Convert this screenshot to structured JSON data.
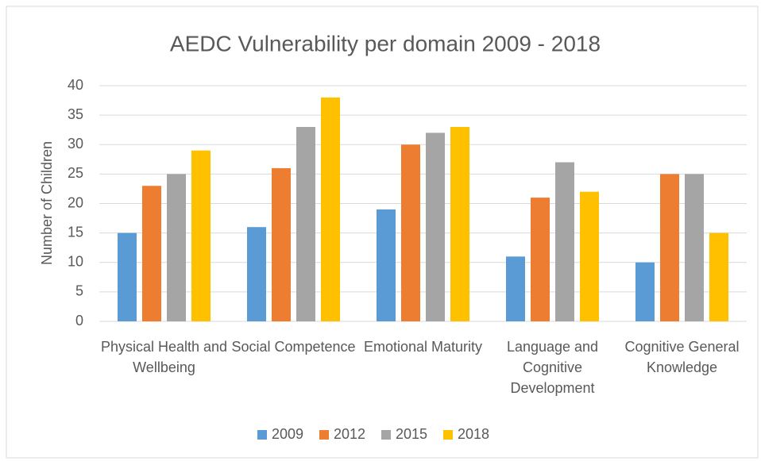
{
  "chart_data": {
    "type": "bar",
    "title": "AEDC Vulnerability per domain 2009 - 2018",
    "y_label": "Number of Children",
    "categories": [
      "Physical Health and Wellbeing",
      "Social Competence",
      "Emotional Maturity",
      "Language and Cognitive Development",
      "Cognitive General Knowledge"
    ],
    "series": [
      {
        "name": "2009",
        "color": "#5b9bd5",
        "values": [
          15,
          16,
          19,
          11,
          10
        ]
      },
      {
        "name": "2012",
        "color": "#ed7d31",
        "values": [
          23,
          26,
          30,
          21,
          25
        ]
      },
      {
        "name": "2015",
        "color": "#a5a5a5",
        "values": [
          25,
          33,
          32,
          27,
          25
        ]
      },
      {
        "name": "2018",
        "color": "#ffc000",
        "values": [
          29,
          38,
          33,
          22,
          15
        ]
      }
    ],
    "ylim": [
      0,
      40
    ],
    "yticks": [
      0,
      5,
      10,
      15,
      20,
      25,
      30,
      35,
      40
    ],
    "grid": true,
    "legend": "bottom"
  }
}
